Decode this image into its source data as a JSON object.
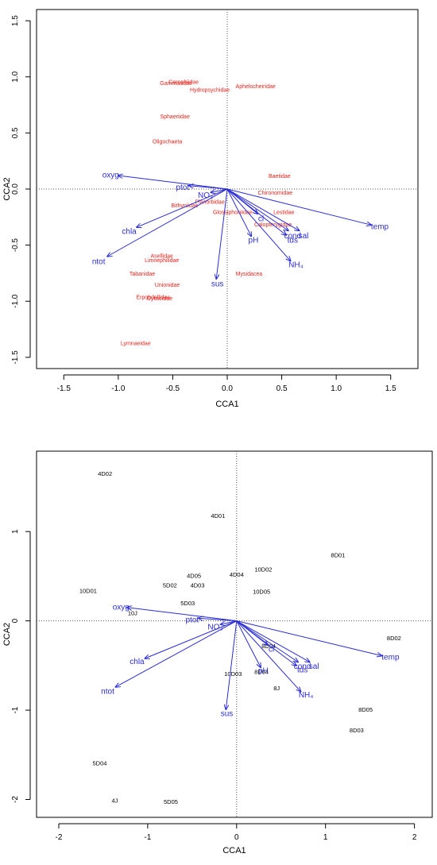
{
  "colors": {
    "axis": "#000000",
    "arrow": "#2b2bd6",
    "species": "#e8231b",
    "site": "#000000",
    "zero_line": "#555555"
  },
  "chart_data": [
    {
      "type": "scatter",
      "subtype": "cca-biplot-species",
      "xlabel": "CCA1",
      "ylabel": "CCA2",
      "xlim": [
        -1.75,
        1.75
      ],
      "ylim": [
        -1.6,
        1.6
      ],
      "xticks": [
        -1.5,
        -1.0,
        -0.5,
        0.0,
        0.5,
        1.0,
        1.5
      ],
      "xtick_labels": [
        "-1.5",
        "-1.0",
        "-0.5",
        "0.0",
        "0.5",
        "1.0",
        "1.5"
      ],
      "yticks": [
        -1.5,
        -1.0,
        -0.5,
        0.0,
        0.5,
        1.0,
        1.5
      ],
      "ytick_labels": [
        "-1.5",
        "-1.0",
        "-0.5",
        "0.0",
        "0.5",
        "1.0",
        "1.5"
      ],
      "grid": false,
      "vectors": [
        {
          "label": "oxyg",
          "x": -1.0,
          "y": 0.12,
          "lx": -1.07,
          "ly": 0.13
        },
        {
          "label": "ptot",
          "x": -0.35,
          "y": 0.03,
          "lx": -0.41,
          "ly": 0.02
        },
        {
          "label": "NO₃",
          "x": -0.15,
          "y": -0.03,
          "lx": -0.2,
          "ly": -0.05
        },
        {
          "label": "chla",
          "x": -0.83,
          "y": -0.34,
          "lx": -0.9,
          "ly": -0.37
        },
        {
          "label": "ntot",
          "x": -1.1,
          "y": -0.6,
          "lx": -1.18,
          "ly": -0.64
        },
        {
          "label": "sus",
          "x": -0.1,
          "y": -0.8,
          "lx": -0.09,
          "ly": -0.84
        },
        {
          "label": "pH",
          "x": 0.22,
          "y": -0.42,
          "lx": 0.24,
          "ly": -0.45
        },
        {
          "label": "cl",
          "x": 0.28,
          "y": -0.22,
          "lx": 0.31,
          "ly": -0.26
        },
        {
          "label": "cond",
          "x": 0.56,
          "y": -0.37,
          "lx": 0.6,
          "ly": -0.41
        },
        {
          "label": "sal",
          "x": 0.66,
          "y": -0.37,
          "lx": 0.7,
          "ly": -0.41
        },
        {
          "label": "tds",
          "x": 0.54,
          "y": -0.41,
          "lx": 0.6,
          "ly": -0.45
        },
        {
          "label": "NH₄",
          "x": 0.58,
          "y": -0.64,
          "lx": 0.63,
          "ly": -0.67
        },
        {
          "label": "temp",
          "x": 1.32,
          "y": -0.32,
          "lx": 1.4,
          "ly": -0.33
        }
      ],
      "points": [
        {
          "label": "Gammaridae",
          "x": -0.47,
          "y": 0.95
        },
        {
          "label": "Corophiidae",
          "x": -0.4,
          "y": 0.96
        },
        {
          "label": "Aphelocheiridae",
          "x": 0.26,
          "y": 0.92
        },
        {
          "label": "Hydropsychidae",
          "x": -0.16,
          "y": 0.89
        },
        {
          "label": "Sphaeriidae",
          "x": -0.48,
          "y": 0.65
        },
        {
          "label": "Oligochaeta",
          "x": -0.55,
          "y": 0.43
        },
        {
          "label": "Baetidae",
          "x": 0.48,
          "y": 0.12
        },
        {
          "label": "Chironomidae",
          "x": 0.44,
          "y": -0.03
        },
        {
          "label": "Planorbidae",
          "x": -0.16,
          "y": -0.11
        },
        {
          "label": "Bithyniidae",
          "x": -0.39,
          "y": -0.14
        },
        {
          "label": "Glossiphoniidae",
          "x": 0.05,
          "y": -0.2
        },
        {
          "label": "Lestidae",
          "x": 0.52,
          "y": -0.2
        },
        {
          "label": "Calopterygidae",
          "x": 0.42,
          "y": -0.31
        },
        {
          "label": "Asellidae",
          "x": -0.6,
          "y": -0.59
        },
        {
          "label": "Limnephilidae",
          "x": -0.6,
          "y": -0.63
        },
        {
          "label": "Tabanidae",
          "x": -0.78,
          "y": -0.75
        },
        {
          "label": "Mysidacea",
          "x": 0.2,
          "y": -0.75
        },
        {
          "label": "Unionidae",
          "x": -0.55,
          "y": -0.85
        },
        {
          "label": "Erpobdellidae",
          "x": -0.68,
          "y": -0.96
        },
        {
          "label": "Dytiscidae",
          "x": -0.62,
          "y": -0.97
        },
        {
          "label": "Lymnaeidae",
          "x": -0.84,
          "y": -1.37
        }
      ]
    },
    {
      "type": "scatter",
      "subtype": "cca-biplot-sites",
      "xlabel": "CCA1",
      "ylabel": "CCA2",
      "xlim": [
        -2.25,
        2.2
      ],
      "ylim": [
        -2.2,
        1.9
      ],
      "xticks": [
        -2,
        -1,
        0,
        1,
        2
      ],
      "xtick_labels": [
        "-2",
        "-1",
        "0",
        "1",
        "2"
      ],
      "yticks": [
        -2,
        -1,
        0,
        1
      ],
      "ytick_labels": [
        "-2",
        "-1",
        "0",
        "1"
      ],
      "grid": false,
      "vectors": [
        {
          "label": "oxyg",
          "x": -1.23,
          "y": 0.15,
          "lx": -1.3,
          "ly": 0.16
        },
        {
          "label": "ptot",
          "x": -0.43,
          "y": 0.03,
          "lx": -0.5,
          "ly": 0.02
        },
        {
          "label": "NO₃",
          "x": -0.18,
          "y": -0.04,
          "lx": -0.24,
          "ly": -0.06
        },
        {
          "label": "chla",
          "x": -1.03,
          "y": -0.42,
          "lx": -1.12,
          "ly": -0.45
        },
        {
          "label": "ntot",
          "x": -1.36,
          "y": -0.74,
          "lx": -1.45,
          "ly": -0.78
        },
        {
          "label": "sus",
          "x": -0.12,
          "y": -0.99,
          "lx": -0.11,
          "ly": -1.03
        },
        {
          "label": "pH",
          "x": 0.27,
          "y": -0.52,
          "lx": 0.3,
          "ly": -0.55
        },
        {
          "label": "cl",
          "x": 0.35,
          "y": -0.27,
          "lx": 0.39,
          "ly": -0.31
        },
        {
          "label": "cond",
          "x": 0.69,
          "y": -0.46,
          "lx": 0.74,
          "ly": -0.5
        },
        {
          "label": "sal",
          "x": 0.82,
          "y": -0.46,
          "lx": 0.87,
          "ly": -0.5
        },
        {
          "label": "tds",
          "x": 0.67,
          "y": -0.5,
          "lx": 0.74,
          "ly": -0.54
        },
        {
          "label": "NH₄",
          "x": 0.72,
          "y": -0.79,
          "lx": 0.78,
          "ly": -0.82
        },
        {
          "label": "temp",
          "x": 1.63,
          "y": -0.39,
          "lx": 1.73,
          "ly": -0.4
        }
      ],
      "points": [
        {
          "label": "4D02",
          "x": -1.48,
          "y": 1.65
        },
        {
          "label": "4D01",
          "x": -0.21,
          "y": 1.18
        },
        {
          "label": "8D01",
          "x": 1.14,
          "y": 0.74
        },
        {
          "label": "10D02",
          "x": 0.3,
          "y": 0.58
        },
        {
          "label": "4D05",
          "x": -0.48,
          "y": 0.51
        },
        {
          "label": "4D04",
          "x": 0.0,
          "y": 0.52
        },
        {
          "label": "5D02",
          "x": -0.75,
          "y": 0.4
        },
        {
          "label": "4D03",
          "x": -0.44,
          "y": 0.4
        },
        {
          "label": "10D01",
          "x": -1.67,
          "y": 0.34
        },
        {
          "label": "10D05",
          "x": 0.28,
          "y": 0.33
        },
        {
          "label": "5D03",
          "x": -0.55,
          "y": 0.2
        },
        {
          "label": "10J",
          "x": -1.17,
          "y": 0.09
        },
        {
          "label": "8D02",
          "x": 1.77,
          "y": -0.19
        },
        {
          "label": "8D04",
          "x": 0.36,
          "y": -0.28
        },
        {
          "label": "10D03",
          "x": -0.04,
          "y": -0.59
        },
        {
          "label": "8D04",
          "x": 0.28,
          "y": -0.57
        },
        {
          "label": "8J",
          "x": 0.45,
          "y": -0.75
        },
        {
          "label": "8D05",
          "x": 1.45,
          "y": -0.99
        },
        {
          "label": "8D03",
          "x": 1.35,
          "y": -1.22
        },
        {
          "label": "5D04",
          "x": -1.54,
          "y": -1.59
        },
        {
          "label": "4J",
          "x": -1.37,
          "y": -2.01
        },
        {
          "label": "5D05",
          "x": -0.74,
          "y": -2.02
        }
      ]
    }
  ]
}
